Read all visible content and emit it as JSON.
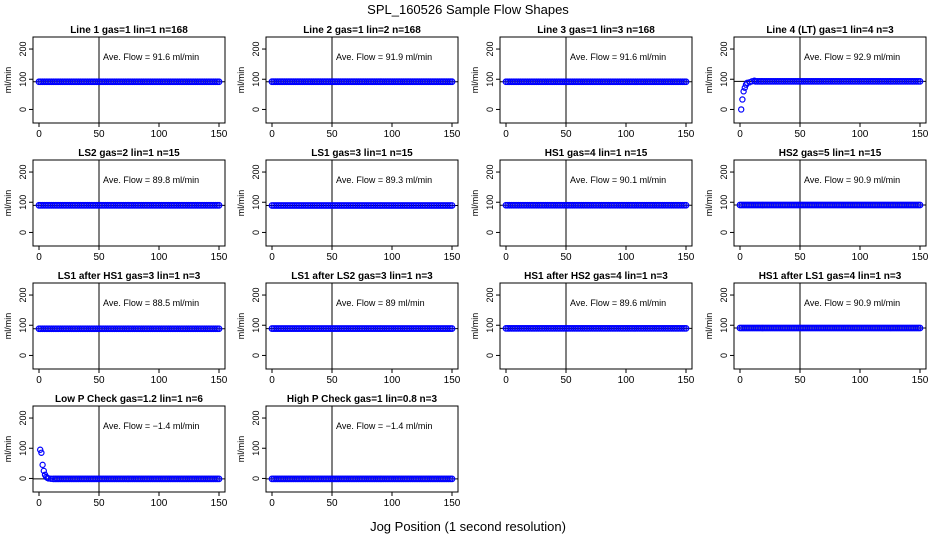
{
  "figure": {
    "title": "SPL_160526  Sample Flow Shapes",
    "xlabel": "Jog Position (1 second resolution)"
  },
  "chart_data": [
    {
      "type": "scatter",
      "title": "Line 1 gas=1 lin=1 n=168",
      "ylabel": "ml/min",
      "xlim": [
        0,
        150
      ],
      "ylim": [
        -25,
        220
      ],
      "xticks": [
        0,
        50,
        100,
        150
      ],
      "yticks": [
        0,
        100,
        200
      ],
      "vline": 50,
      "hline": 91.6,
      "annotation": "Ave. Flow = 91.6  ml/min",
      "series": [
        {
          "color": "#0000ff",
          "x": [
            0,
            150
          ],
          "y": [
            91.6,
            91.6
          ],
          "dense": true
        }
      ]
    },
    {
      "type": "scatter",
      "title": "Line 2 gas=1 lin=2 n=168",
      "ylabel": "ml/min",
      "xlim": [
        0,
        150
      ],
      "ylim": [
        -25,
        220
      ],
      "xticks": [
        0,
        50,
        100,
        150
      ],
      "yticks": [
        0,
        100,
        200
      ],
      "vline": 50,
      "hline": 91.9,
      "annotation": "Ave. Flow = 91.9  ml/min",
      "series": [
        {
          "color": "#0000ff",
          "x": [
            0,
            150
          ],
          "y": [
            91.9,
            91.9
          ],
          "dense": true
        }
      ]
    },
    {
      "type": "scatter",
      "title": "Line 3 gas=1 lin=3 n=168",
      "ylabel": "ml/min",
      "xlim": [
        0,
        150
      ],
      "ylim": [
        -25,
        220
      ],
      "xticks": [
        0,
        50,
        100,
        150
      ],
      "yticks": [
        0,
        100,
        200
      ],
      "vline": 50,
      "hline": 91.6,
      "annotation": "Ave. Flow = 91.6  ml/min",
      "series": [
        {
          "color": "#0000ff",
          "x": [
            0,
            150
          ],
          "y": [
            91.6,
            91.6
          ],
          "dense": true
        }
      ]
    },
    {
      "type": "scatter",
      "title": "Line 4 (LT) gas=1 lin=4 n=3",
      "ylabel": "ml/min",
      "xlim": [
        0,
        150
      ],
      "ylim": [
        -25,
        220
      ],
      "xticks": [
        0,
        50,
        100,
        150
      ],
      "yticks": [
        0,
        100,
        200
      ],
      "vline": 50,
      "hline": 92.9,
      "annotation": "Ave. Flow = 92.9  ml/min",
      "series": [
        {
          "color": "#0000ff",
          "x": [
            13,
            150
          ],
          "y": [
            92.9,
            92.9
          ],
          "dense": true,
          "points": [
            [
              1,
              0
            ],
            [
              2,
              33
            ],
            [
              3,
              60
            ],
            [
              4,
              72
            ],
            [
              5,
              82
            ],
            [
              6,
              88
            ],
            [
              8,
              90
            ],
            [
              10,
              93
            ],
            [
              12,
              95
            ]
          ]
        }
      ]
    },
    {
      "type": "scatter",
      "title": "LS2 gas=2 lin=1 n=15",
      "ylabel": "ml/min",
      "xlim": [
        0,
        150
      ],
      "ylim": [
        -25,
        220
      ],
      "xticks": [
        0,
        50,
        100,
        150
      ],
      "yticks": [
        0,
        100,
        200
      ],
      "vline": 50,
      "hline": 89.8,
      "annotation": "Ave. Flow = 89.8  ml/min",
      "series": [
        {
          "color": "#0000ff",
          "x": [
            0,
            150
          ],
          "y": [
            89.8,
            89.8
          ],
          "dense": true
        }
      ]
    },
    {
      "type": "scatter",
      "title": "LS1 gas=3 lin=1 n=15",
      "ylabel": "ml/min",
      "xlim": [
        0,
        150
      ],
      "ylim": [
        -25,
        220
      ],
      "xticks": [
        0,
        50,
        100,
        150
      ],
      "yticks": [
        0,
        100,
        200
      ],
      "vline": 50,
      "hline": 89.3,
      "annotation": "Ave. Flow = 89.3  ml/min",
      "series": [
        {
          "color": "#0000ff",
          "x": [
            0,
            150
          ],
          "y": [
            89.3,
            89.3
          ],
          "dense": true
        }
      ]
    },
    {
      "type": "scatter",
      "title": "HS1 gas=4 lin=1 n=15",
      "ylabel": "ml/min",
      "xlim": [
        0,
        150
      ],
      "ylim": [
        -25,
        220
      ],
      "xticks": [
        0,
        50,
        100,
        150
      ],
      "yticks": [
        0,
        100,
        200
      ],
      "vline": 50,
      "hline": 90.1,
      "annotation": "Ave. Flow = 90.1  ml/min",
      "series": [
        {
          "color": "#0000ff",
          "x": [
            0,
            150
          ],
          "y": [
            90.1,
            90.1
          ],
          "dense": true
        }
      ]
    },
    {
      "type": "scatter",
      "title": "HS2 gas=5 lin=1 n=15",
      "ylabel": "ml/min",
      "xlim": [
        0,
        150
      ],
      "ylim": [
        -25,
        220
      ],
      "xticks": [
        0,
        50,
        100,
        150
      ],
      "yticks": [
        0,
        100,
        200
      ],
      "vline": 50,
      "hline": 90.9,
      "annotation": "Ave. Flow = 90.9  ml/min",
      "series": [
        {
          "color": "#0000ff",
          "x": [
            0,
            150
          ],
          "y": [
            90.9,
            90.9
          ],
          "dense": true
        }
      ]
    },
    {
      "type": "scatter",
      "title": "LS1 after HS1 gas=3 lin=1 n=3",
      "ylabel": "ml/min",
      "xlim": [
        0,
        150
      ],
      "ylim": [
        -25,
        220
      ],
      "xticks": [
        0,
        50,
        100,
        150
      ],
      "yticks": [
        0,
        100,
        200
      ],
      "vline": 50,
      "hline": 88.5,
      "annotation": "Ave. Flow = 88.5  ml/min",
      "series": [
        {
          "color": "#0000ff",
          "x": [
            0,
            150
          ],
          "y": [
            88.5,
            88.5
          ],
          "dense": true
        }
      ]
    },
    {
      "type": "scatter",
      "title": "LS1 after LS2 gas=3 lin=1 n=3",
      "ylabel": "ml/min",
      "xlim": [
        0,
        150
      ],
      "ylim": [
        -25,
        220
      ],
      "xticks": [
        0,
        50,
        100,
        150
      ],
      "yticks": [
        0,
        100,
        200
      ],
      "vline": 50,
      "hline": 89,
      "annotation": "Ave. Flow = 89  ml/min",
      "series": [
        {
          "color": "#0000ff",
          "x": [
            0,
            150
          ],
          "y": [
            89,
            89
          ],
          "dense": true
        }
      ]
    },
    {
      "type": "scatter",
      "title": "HS1 after HS2 gas=4 lin=1 n=3",
      "ylabel": "ml/min",
      "xlim": [
        0,
        150
      ],
      "ylim": [
        -25,
        220
      ],
      "xticks": [
        0,
        50,
        100,
        150
      ],
      "yticks": [
        0,
        100,
        200
      ],
      "vline": 50,
      "hline": 89.6,
      "annotation": "Ave. Flow = 89.6  ml/min",
      "series": [
        {
          "color": "#0000ff",
          "x": [
            0,
            150
          ],
          "y": [
            89.6,
            89.6
          ],
          "dense": true
        }
      ]
    },
    {
      "type": "scatter",
      "title": "HS1 after LS1 gas=4 lin=1 n=3",
      "ylabel": "ml/min",
      "xlim": [
        0,
        150
      ],
      "ylim": [
        -25,
        220
      ],
      "xticks": [
        0,
        50,
        100,
        150
      ],
      "yticks": [
        0,
        100,
        200
      ],
      "vline": 50,
      "hline": 90.9,
      "annotation": "Ave. Flow = 90.9  ml/min",
      "series": [
        {
          "color": "#0000ff",
          "x": [
            0,
            150
          ],
          "y": [
            90.9,
            90.9
          ],
          "dense": true
        }
      ]
    },
    {
      "type": "scatter",
      "title": "Low P Check gas=1.2 lin=1 n=6",
      "ylabel": "ml/min",
      "xlim": [
        0,
        150
      ],
      "ylim": [
        -25,
        220
      ],
      "xticks": [
        0,
        50,
        100,
        150
      ],
      "yticks": [
        0,
        100,
        200
      ],
      "vline": 50,
      "hline": -1.4,
      "annotation": "Ave. Flow = −1.4  ml/min",
      "series": [
        {
          "color": "#0000ff",
          "x": [
            12,
            150
          ],
          "y": [
            -1.4,
            -1.4
          ],
          "dense": true,
          "points": [
            [
              1,
              95
            ],
            [
              2,
              85
            ],
            [
              3,
              45
            ],
            [
              4,
              25
            ],
            [
              5,
              12
            ],
            [
              6,
              5
            ],
            [
              7,
              2
            ],
            [
              8,
              0
            ],
            [
              10,
              -1
            ]
          ]
        }
      ]
    },
    {
      "type": "scatter",
      "title": "High P Check gas=1 lin=0.8 n=3",
      "ylabel": "ml/min",
      "xlim": [
        0,
        150
      ],
      "ylim": [
        -25,
        220
      ],
      "xticks": [
        0,
        50,
        100,
        150
      ],
      "yticks": [
        0,
        100,
        200
      ],
      "vline": 50,
      "hline": -1.4,
      "annotation": "Ave. Flow = −1.4  ml/min",
      "series": [
        {
          "color": "#0000ff",
          "x": [
            0,
            150
          ],
          "y": [
            -1.4,
            -1.4
          ],
          "dense": true
        }
      ]
    }
  ]
}
